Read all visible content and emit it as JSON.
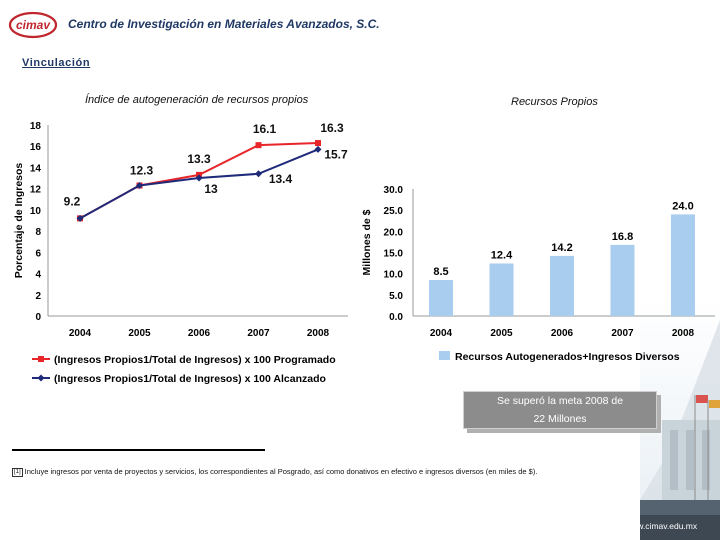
{
  "header": {
    "logo_text": "cimav",
    "org_name": "Centro de Investigación en Materiales Avanzados, S.C."
  },
  "section_title": "Vinculación",
  "callout": {
    "line1": "Se superó la meta 2008 de",
    "line2": "22 Millones"
  },
  "footnote": {
    "mark": "[1]",
    "text": "Incluye ingresos por venta de proyectos y servicios, los correspondientes al Posgrado, así como donativos en efectivo e ingresos diversos (en miles de $)."
  },
  "website": "www.cimav.edu.mx",
  "chart_data": [
    {
      "type": "line",
      "title": "Índice de autogeneración de recursos propios",
      "ylabel": "Porcentaje de Ingresos",
      "xlabel": "",
      "categories": [
        "2004",
        "2005",
        "2006",
        "2007",
        "2008"
      ],
      "ylim": [
        0,
        18
      ],
      "yticks": [
        "0",
        "2",
        "4",
        "6",
        "8",
        "10",
        "12",
        "14",
        "16",
        "18"
      ],
      "grid": false,
      "legend_position": "bottom",
      "series": [
        {
          "name": "(Ingresos Propios1/Total de Ingresos) x 100 Programado",
          "color": "#e8262a",
          "marker": "square",
          "values": [
            9.2,
            12.3,
            13.3,
            16.1,
            16.3
          ],
          "labels": [
            "9.2",
            "12.3",
            "13.3",
            "16.1",
            "16.3"
          ]
        },
        {
          "name": "(Ingresos Propios1/Total de Ingresos) x 100 Alcanzado",
          "color": "#1f2a7a",
          "marker": "diamond",
          "values": [
            9.2,
            12.3,
            13.0,
            13.4,
            15.7
          ],
          "labels": [
            "",
            "",
            "13",
            "13.4",
            "15.7"
          ]
        }
      ]
    },
    {
      "type": "bar",
      "title": "Recursos Propios",
      "ylabel": "Millones de $",
      "xlabel": "",
      "categories": [
        "2004",
        "2005",
        "2006",
        "2007",
        "2008"
      ],
      "ylim": [
        0,
        30
      ],
      "yticks": [
        "0.0",
        "5.0",
        "10.0",
        "15.0",
        "20.0",
        "25.0",
        "30.0"
      ],
      "grid": false,
      "legend_position": "bottom",
      "series": [
        {
          "name": "Recursos Autogenerados+Ingresos Diversos",
          "color": "#a9cdee",
          "values": [
            8.5,
            12.4,
            14.2,
            16.8,
            24.0
          ],
          "labels": [
            "8.5",
            "12.4",
            "14.2",
            "16.8",
            "24.0"
          ]
        }
      ]
    }
  ]
}
